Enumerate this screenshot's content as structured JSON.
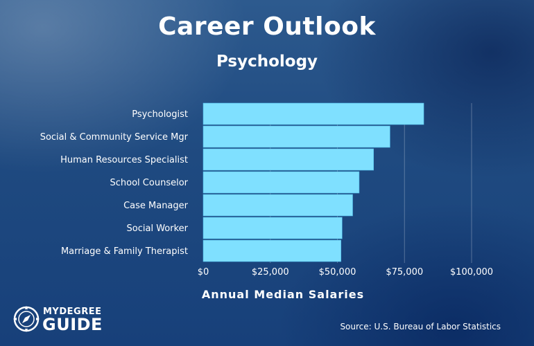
{
  "header": {
    "title": "Career Outlook",
    "subtitle": "Psychology"
  },
  "logo": {
    "line1": "MYDEGREE",
    "line2": "GUIDE"
  },
  "source": "Source: U.S. Bureau of Labor Statistics",
  "colors": {
    "bar": "#7fe0ff",
    "background": "#1f4a80",
    "text": "#ffffff"
  },
  "chart_data": {
    "type": "bar",
    "orientation": "horizontal",
    "categories": [
      "Psychologist",
      "Social & Community Service Mgr",
      "Human Resources Specialist",
      "School Counselor",
      "Case Manager",
      "Social Worker",
      "Marriage & Family Therapist"
    ],
    "values": [
      82180,
      69600,
      63490,
      58120,
      55690,
      51760,
      51340
    ],
    "xlabel": "Annual Median Salaries",
    "ylabel": "",
    "xlim": [
      0,
      100000
    ],
    "ticks": [
      0,
      25000,
      50000,
      75000,
      100000
    ],
    "tick_labels": [
      "$0",
      "$25,000",
      "$50,000",
      "$75,000",
      "$100,000"
    ],
    "grid": true
  }
}
